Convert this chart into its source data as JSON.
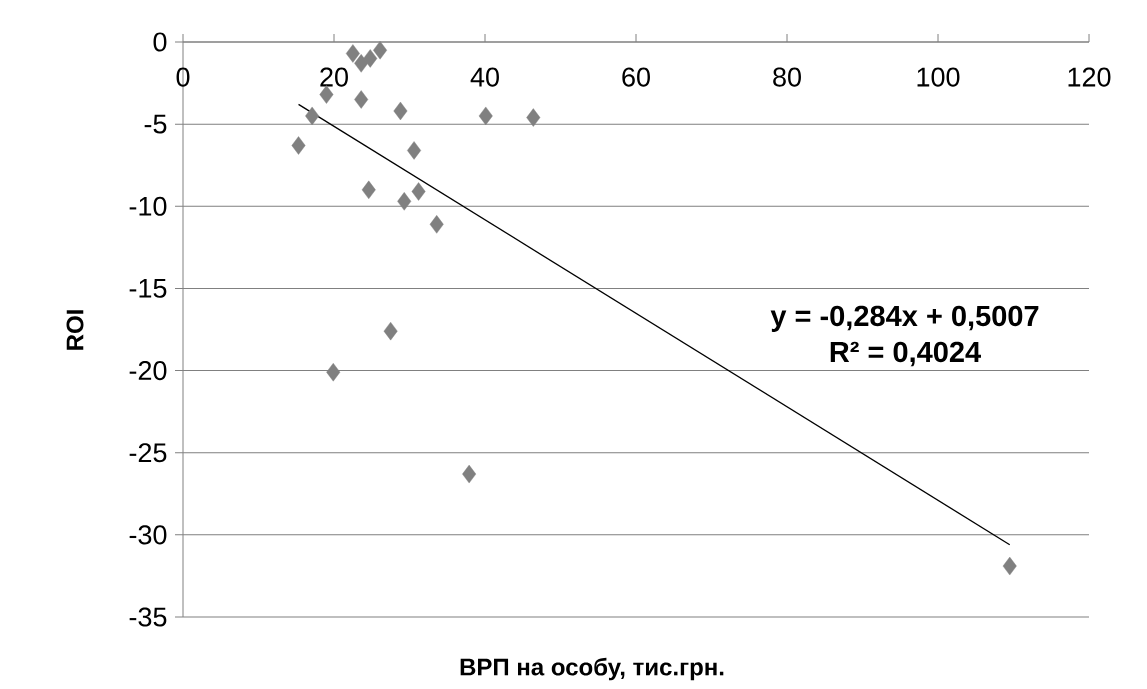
{
  "chart_data": {
    "type": "scatter",
    "xlabel": "ВРП на особу, тис.грн.",
    "ylabel": "ROI",
    "xlim": [
      0,
      120
    ],
    "ylim": [
      -35,
      0
    ],
    "xticks": [
      0,
      20,
      40,
      60,
      80,
      100,
      120
    ],
    "yticks": [
      -35,
      -30,
      -25,
      -20,
      -15,
      -10,
      -5,
      0
    ],
    "grid": "y",
    "marker": "diamond",
    "series": [
      {
        "color": "#808080",
        "x": [
          22.5,
          23.6,
          24.8,
          26.1,
          19.0,
          23.6,
          28.8,
          17.1,
          40.1,
          46.4,
          15.3,
          30.6,
          24.6,
          31.2,
          29.3,
          33.6,
          27.5,
          19.9,
          37.9,
          109.5
        ],
        "values": [
          -0.7,
          -1.3,
          -1.0,
          -0.5,
          -3.2,
          -3.5,
          -4.2,
          -4.5,
          -4.5,
          -4.6,
          -6.3,
          -6.6,
          -9.0,
          -9.1,
          -9.7,
          -11.1,
          -17.6,
          -20.1,
          -26.3,
          -31.9
        ]
      },
      {
        "type": "line",
        "color": "#000000",
        "marker": "none",
        "x": [
          15.3,
          109.5
        ],
        "values": [
          -3.8,
          -30.6
        ]
      }
    ],
    "annotations": [
      "y = -0,284x + 0,5007",
      "R² = 0,4024"
    ]
  }
}
